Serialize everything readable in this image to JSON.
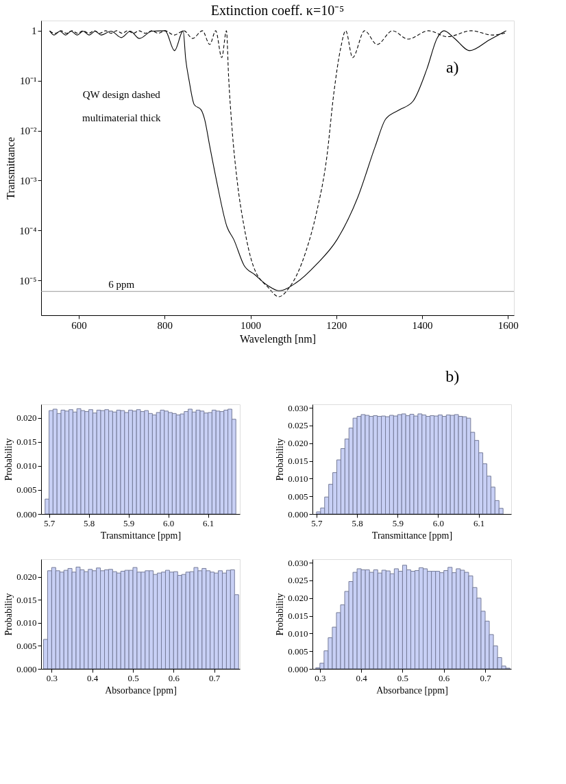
{
  "chart_data": [
    {
      "type": "line",
      "title": "Extinction coeff. κ=10⁻⁵",
      "xlabel": "Wavelength [nm]",
      "ylabel": "Transmittance",
      "log": "y",
      "xlim": [
        512,
        1614
      ],
      "xticks": [
        600,
        800,
        1000,
        1200,
        1400,
        1600
      ],
      "ylim": [
        2e-06,
        1.6
      ],
      "yticks": [
        1,
        {
          "value": 0.1,
          "label": "10⁻¹"
        },
        {
          "value": 0.01,
          "label": "10⁻²"
        },
        {
          "value": 0.001,
          "label": "10⁻³"
        },
        {
          "value": 0.0001,
          "label": "10⁻⁴"
        },
        {
          "value": 1e-05,
          "label": "10⁻⁵"
        }
      ],
      "series": [
        {
          "color": "#000000",
          "line_style": "solid",
          "x": [
            532,
            542,
            556,
            569,
            582,
            596,
            610,
            624,
            638,
            652,
            675,
            699,
            720,
            741,
            770,
            801,
            823,
            843,
            849,
            857,
            869,
            885,
            893,
            905,
            921,
            945,
            961,
            985,
            1010,
            1040,
            1066,
            1106,
            1154,
            1202,
            1250,
            1291,
            1315,
            1347,
            1379,
            1411,
            1435,
            1451,
            1475,
            1511,
            1556,
            1596
          ],
          "values": [
            1.0,
            0.82,
            0.98,
            0.82,
            0.98,
            0.82,
            0.98,
            0.82,
            0.98,
            0.82,
            0.98,
            0.73,
            0.98,
            0.7,
            0.98,
            1.0,
            0.4,
            1.0,
            0.27,
            0.1,
            0.033,
            0.026,
            0.017,
            0.0049,
            0.00098,
            0.00012,
            6.6e-05,
            2e-05,
            1.3e-05,
            7.9e-06,
            6.2e-06,
            8.9e-06,
            2.1e-05,
            6.6e-05,
            0.00046,
            0.0049,
            0.017,
            0.026,
            0.039,
            0.17,
            0.71,
            1.0,
            0.71,
            0.4,
            0.65,
            1.0
          ]
        },
        {
          "color": "#000000",
          "line_style": "dashed",
          "x": [
            532,
            545,
            558,
            571,
            584,
            597,
            610,
            623,
            636,
            649,
            662,
            675,
            688,
            701,
            714,
            727,
            740,
            755,
            770,
            785,
            801,
            822,
            845,
            865,
            888,
            905,
            919,
            933,
            944,
            949,
            957,
            969,
            985,
            1006,
            1042,
            1066,
            1090,
            1110,
            1130,
            1154,
            1178,
            1194,
            1210,
            1222,
            1238,
            1266,
            1295,
            1331,
            1367,
            1415,
            1459,
            1515,
            1564,
            1596
          ],
          "values": [
            0.98,
            0.89,
            1.0,
            0.89,
            1.0,
            0.89,
            1.0,
            0.89,
            1.0,
            0.89,
            1.0,
            0.89,
            1.0,
            0.89,
            1.0,
            0.89,
            1.0,
            0.89,
            1.0,
            0.89,
            1.0,
            0.82,
            1.0,
            0.7,
            1.0,
            0.53,
            1.0,
            0.29,
            1.0,
            0.12,
            0.011,
            0.00098,
            0.00012,
            2e-05,
            7.1e-06,
            4.7e-06,
            7.1e-06,
            1.4e-05,
            4e-05,
            0.00023,
            0.003,
            0.054,
            0.44,
            1.0,
            0.29,
            1.0,
            0.53,
            1.0,
            0.68,
            1.0,
            0.76,
            1.0,
            0.82,
            0.91
          ]
        }
      ],
      "ref_lines": [
        {
          "axis": "y",
          "value": 6e-06,
          "label": "6 ppm",
          "color": "#999999"
        }
      ],
      "annotations": [
        "a)",
        "QW design dashed",
        "multimaterial thick",
        "b)"
      ]
    },
    {
      "type": "histogram",
      "xlabel": "Transmittance [ppm]",
      "ylabel": "Probability",
      "color": "#c8d0f5",
      "xlim": [
        5.68,
        6.18
      ],
      "xticks": [
        5.7,
        5.8,
        5.9,
        {
          "value": 6,
          "label": "6.0"
        },
        6.1
      ],
      "ylim": [
        0,
        0.0228
      ],
      "yticks": [
        {
          "value": 0,
          "label": "0.000"
        },
        0.005,
        {
          "value": 0.01,
          "label": "0.010"
        },
        0.015,
        {
          "value": 0.02,
          "label": "0.020"
        }
      ],
      "bins": [
        5.69,
        5.7,
        5.71,
        5.72,
        5.73,
        5.74,
        5.75,
        5.76,
        5.77,
        5.78,
        5.79,
        5.8,
        5.81,
        5.82,
        5.83,
        5.84,
        5.85,
        5.86,
        5.87,
        5.88,
        5.89,
        5.9,
        5.91,
        5.92,
        5.93,
        5.94,
        5.95,
        5.96,
        5.97,
        5.98,
        5.99,
        6.0,
        6.01,
        6.02,
        6.03,
        6.04,
        6.05,
        6.06,
        6.07,
        6.08,
        6.09,
        6.1,
        6.11,
        6.12,
        6.13,
        6.14,
        6.15,
        6.16,
        6.17
      ],
      "values": [
        0.0031,
        0.0215,
        0.0218,
        0.0209,
        0.0216,
        0.0214,
        0.0217,
        0.0212,
        0.0219,
        0.0215,
        0.0213,
        0.0217,
        0.021,
        0.0216,
        0.0215,
        0.0217,
        0.0214,
        0.0212,
        0.0216,
        0.0215,
        0.0211,
        0.0216,
        0.0214,
        0.0217,
        0.0213,
        0.0215,
        0.0209,
        0.0206,
        0.0211,
        0.0216,
        0.0214,
        0.0211,
        0.0209,
        0.0206,
        0.0208,
        0.0213,
        0.0218,
        0.0212,
        0.0216,
        0.0214,
        0.021,
        0.0211,
        0.0216,
        0.0214,
        0.0213,
        0.0216,
        0.0218,
        0.0197
      ]
    },
    {
      "type": "histogram",
      "xlabel": "Transmittance [ppm]",
      "ylabel": "Probability",
      "color": "#c8d0f5",
      "xlim": [
        5.69,
        6.18
      ],
      "xticks": [
        5.7,
        5.8,
        5.9,
        {
          "value": 6,
          "label": "6.0"
        },
        6.1
      ],
      "ylim": [
        0,
        0.031
      ],
      "yticks": [
        {
          "value": 0,
          "label": "0.000"
        },
        0.005,
        {
          "value": 0.01,
          "label": "0.010"
        },
        0.015,
        {
          "value": 0.02,
          "label": "0.020"
        },
        0.025,
        {
          "value": 0.03,
          "label": "0.030"
        }
      ],
      "bins": [
        5.7,
        5.71,
        5.72,
        5.73,
        5.74,
        5.75,
        5.76,
        5.77,
        5.78,
        5.79,
        5.8,
        5.81,
        5.82,
        5.83,
        5.84,
        5.85,
        5.86,
        5.87,
        5.88,
        5.89,
        5.9,
        5.91,
        5.92,
        5.93,
        5.94,
        5.95,
        5.96,
        5.97,
        5.98,
        5.99,
        6.0,
        6.01,
        6.02,
        6.03,
        6.04,
        6.05,
        6.06,
        6.07,
        6.08,
        6.09,
        6.1,
        6.11,
        6.12,
        6.13,
        6.14,
        6.15,
        6.16
      ],
      "values": [
        0.0006,
        0.0017,
        0.0048,
        0.0084,
        0.0117,
        0.0153,
        0.0185,
        0.0212,
        0.0243,
        0.0271,
        0.0276,
        0.0281,
        0.0279,
        0.0276,
        0.0278,
        0.0276,
        0.0277,
        0.0275,
        0.0279,
        0.0277,
        0.0281,
        0.0283,
        0.0278,
        0.0282,
        0.0277,
        0.0283,
        0.028,
        0.0276,
        0.0278,
        0.0277,
        0.028,
        0.0276,
        0.028,
        0.0279,
        0.0281,
        0.0276,
        0.0275,
        0.0271,
        0.0231,
        0.0208,
        0.0173,
        0.0142,
        0.0107,
        0.0076,
        0.0038,
        0.0016
      ]
    },
    {
      "type": "histogram",
      "xlabel": "Absorbance [ppm]",
      "ylabel": "Probability",
      "color": "#c8d0f5",
      "xlim": [
        0.274,
        0.763
      ],
      "xticks": [
        0.3,
        0.4,
        0.5,
        0.6,
        0.7
      ],
      "ylim": [
        0,
        0.0238
      ],
      "yticks": [
        {
          "value": 0,
          "label": "0.000"
        },
        0.005,
        {
          "value": 0.01,
          "label": "0.010"
        },
        0.015,
        {
          "value": 0.02,
          "label": "0.020"
        }
      ],
      "bins": [
        0.28,
        0.29,
        0.3,
        0.31,
        0.32,
        0.33,
        0.34,
        0.35,
        0.36,
        0.37,
        0.38,
        0.39,
        0.4,
        0.41,
        0.42,
        0.43,
        0.44,
        0.45,
        0.46,
        0.47,
        0.48,
        0.49,
        0.5,
        0.51,
        0.52,
        0.53,
        0.54,
        0.55,
        0.56,
        0.57,
        0.58,
        0.59,
        0.6,
        0.61,
        0.62,
        0.63,
        0.64,
        0.65,
        0.66,
        0.67,
        0.68,
        0.69,
        0.7,
        0.71,
        0.72,
        0.73,
        0.74,
        0.75,
        0.76
      ],
      "values": [
        0.0064,
        0.0213,
        0.022,
        0.0213,
        0.021,
        0.0214,
        0.0218,
        0.021,
        0.0221,
        0.0215,
        0.0211,
        0.0216,
        0.0213,
        0.0219,
        0.0213,
        0.0215,
        0.0216,
        0.0211,
        0.0208,
        0.0212,
        0.0214,
        0.0214,
        0.022,
        0.021,
        0.021,
        0.0213,
        0.0213,
        0.0205,
        0.0208,
        0.021,
        0.0214,
        0.021,
        0.0211,
        0.0203,
        0.0205,
        0.021,
        0.0211,
        0.022,
        0.0213,
        0.0218,
        0.0213,
        0.021,
        0.0208,
        0.0213,
        0.0208,
        0.0214,
        0.0215,
        0.0161
      ]
    },
    {
      "type": "histogram",
      "xlabel": "Absorbance [ppm]",
      "ylabel": "Probability",
      "color": "#c8d0f5",
      "xlim": [
        0.282,
        0.763
      ],
      "xticks": [
        0.3,
        0.4,
        0.5,
        0.6,
        0.7
      ],
      "ylim": [
        0,
        0.031
      ],
      "yticks": [
        {
          "value": 0,
          "label": "0.000"
        },
        0.005,
        {
          "value": 0.01,
          "label": "0.010"
        },
        0.015,
        {
          "value": 0.02,
          "label": "0.020"
        },
        0.025,
        {
          "value": 0.03,
          "label": "0.030"
        }
      ],
      "bins": [
        0.29,
        0.3,
        0.31,
        0.32,
        0.33,
        0.34,
        0.35,
        0.36,
        0.37,
        0.38,
        0.39,
        0.4,
        0.41,
        0.42,
        0.43,
        0.44,
        0.45,
        0.46,
        0.47,
        0.48,
        0.49,
        0.5,
        0.51,
        0.52,
        0.53,
        0.54,
        0.55,
        0.56,
        0.57,
        0.58,
        0.59,
        0.6,
        0.61,
        0.62,
        0.63,
        0.64,
        0.65,
        0.66,
        0.67,
        0.68,
        0.69,
        0.7,
        0.71,
        0.72,
        0.73,
        0.74,
        0.75,
        0.76
      ],
      "values": [
        0.0003,
        0.0016,
        0.0051,
        0.0088,
        0.0118,
        0.0159,
        0.0181,
        0.0219,
        0.0247,
        0.0273,
        0.0283,
        0.028,
        0.028,
        0.0273,
        0.028,
        0.0271,
        0.0279,
        0.0277,
        0.0269,
        0.0283,
        0.0276,
        0.0293,
        0.028,
        0.0276,
        0.0278,
        0.0286,
        0.0283,
        0.0276,
        0.0276,
        0.0276,
        0.0272,
        0.0278,
        0.0287,
        0.0272,
        0.0283,
        0.0279,
        0.0273,
        0.0263,
        0.023,
        0.02,
        0.0163,
        0.0135,
        0.0097,
        0.0065,
        0.0032,
        0.0008,
        0.0002
      ]
    }
  ]
}
